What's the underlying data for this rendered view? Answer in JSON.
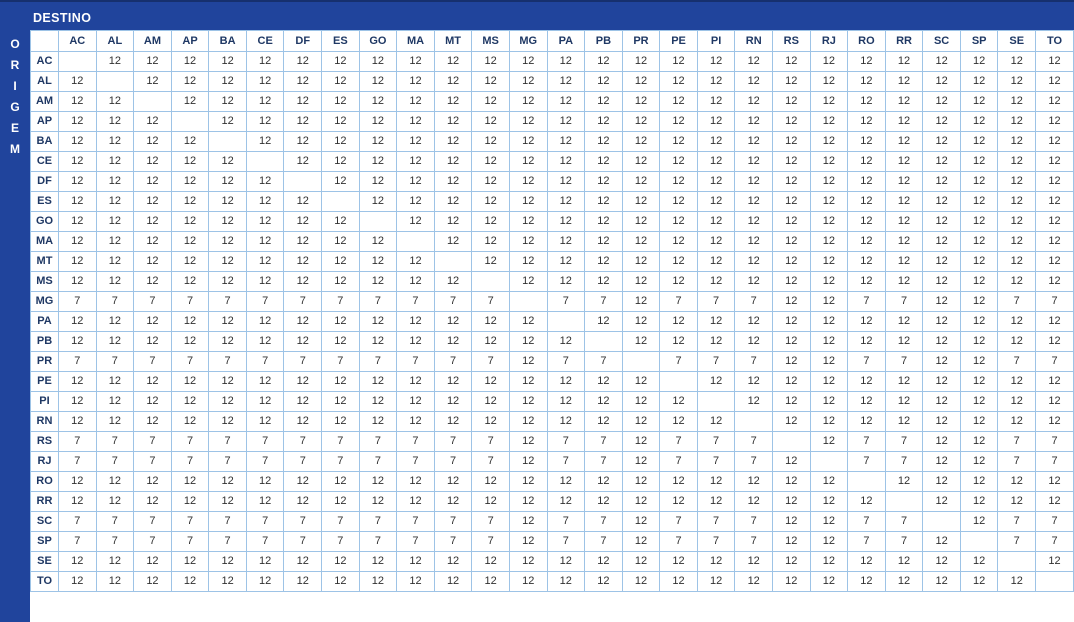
{
  "header": {
    "destino_label": "DESTINO",
    "origem_label": "ORIGEM",
    "origem_letters": [
      "O",
      "R",
      "I",
      "G",
      "E",
      "M"
    ]
  },
  "colors": {
    "band_blue": "#20449C",
    "band_edge_dark": "#16306E",
    "grid_line": "#9DC3E6",
    "header_text": "#1F3864",
    "value_text": "#303030",
    "band_text": "#FFFFFF",
    "cell_background": "#FFFFFF"
  },
  "table": {
    "corner_label": "",
    "column_headers": [
      "AC",
      "AL",
      "AM",
      "AP",
      "BA",
      "CE",
      "DF",
      "ES",
      "GO",
      "MA",
      "MT",
      "MS",
      "MG",
      "PA",
      "PB",
      "PR",
      "PE",
      "PI",
      "RN",
      "RS",
      "RJ",
      "RO",
      "RR",
      "SC",
      "SP",
      "SE",
      "TO"
    ],
    "row_headers": [
      "AC",
      "AL",
      "AM",
      "AP",
      "BA",
      "CE",
      "DF",
      "ES",
      "GO",
      "MA",
      "MT",
      "MS",
      "MG",
      "PA",
      "PB",
      "PR",
      "PE",
      "PI",
      "RN",
      "RS",
      "RJ",
      "RO",
      "RR",
      "SC",
      "SP",
      "SE",
      "TO"
    ],
    "matrix": [
      [
        "",
        "12",
        "12",
        "12",
        "12",
        "12",
        "12",
        "12",
        "12",
        "12",
        "12",
        "12",
        "12",
        "12",
        "12",
        "12",
        "12",
        "12",
        "12",
        "12",
        "12",
        "12",
        "12",
        "12",
        "12",
        "12",
        "12"
      ],
      [
        "12",
        "",
        "12",
        "12",
        "12",
        "12",
        "12",
        "12",
        "12",
        "12",
        "12",
        "12",
        "12",
        "12",
        "12",
        "12",
        "12",
        "12",
        "12",
        "12",
        "12",
        "12",
        "12",
        "12",
        "12",
        "12",
        "12"
      ],
      [
        "12",
        "12",
        "",
        "12",
        "12",
        "12",
        "12",
        "12",
        "12",
        "12",
        "12",
        "12",
        "12",
        "12",
        "12",
        "12",
        "12",
        "12",
        "12",
        "12",
        "12",
        "12",
        "12",
        "12",
        "12",
        "12",
        "12"
      ],
      [
        "12",
        "12",
        "12",
        "",
        "12",
        "12",
        "12",
        "12",
        "12",
        "12",
        "12",
        "12",
        "12",
        "12",
        "12",
        "12",
        "12",
        "12",
        "12",
        "12",
        "12",
        "12",
        "12",
        "12",
        "12",
        "12",
        "12"
      ],
      [
        "12",
        "12",
        "12",
        "12",
        "",
        "12",
        "12",
        "12",
        "12",
        "12",
        "12",
        "12",
        "12",
        "12",
        "12",
        "12",
        "12",
        "12",
        "12",
        "12",
        "12",
        "12",
        "12",
        "12",
        "12",
        "12",
        "12"
      ],
      [
        "12",
        "12",
        "12",
        "12",
        "12",
        "",
        "12",
        "12",
        "12",
        "12",
        "12",
        "12",
        "12",
        "12",
        "12",
        "12",
        "12",
        "12",
        "12",
        "12",
        "12",
        "12",
        "12",
        "12",
        "12",
        "12",
        "12"
      ],
      [
        "12",
        "12",
        "12",
        "12",
        "12",
        "12",
        "",
        "12",
        "12",
        "12",
        "12",
        "12",
        "12",
        "12",
        "12",
        "12",
        "12",
        "12",
        "12",
        "12",
        "12",
        "12",
        "12",
        "12",
        "12",
        "12",
        "12"
      ],
      [
        "12",
        "12",
        "12",
        "12",
        "12",
        "12",
        "12",
        "",
        "12",
        "12",
        "12",
        "12",
        "12",
        "12",
        "12",
        "12",
        "12",
        "12",
        "12",
        "12",
        "12",
        "12",
        "12",
        "12",
        "12",
        "12",
        "12"
      ],
      [
        "12",
        "12",
        "12",
        "12",
        "12",
        "12",
        "12",
        "12",
        "",
        "12",
        "12",
        "12",
        "12",
        "12",
        "12",
        "12",
        "12",
        "12",
        "12",
        "12",
        "12",
        "12",
        "12",
        "12",
        "12",
        "12",
        "12"
      ],
      [
        "12",
        "12",
        "12",
        "12",
        "12",
        "12",
        "12",
        "12",
        "12",
        "",
        "12",
        "12",
        "12",
        "12",
        "12",
        "12",
        "12",
        "12",
        "12",
        "12",
        "12",
        "12",
        "12",
        "12",
        "12",
        "12",
        "12"
      ],
      [
        "12",
        "12",
        "12",
        "12",
        "12",
        "12",
        "12",
        "12",
        "12",
        "12",
        "",
        "12",
        "12",
        "12",
        "12",
        "12",
        "12",
        "12",
        "12",
        "12",
        "12",
        "12",
        "12",
        "12",
        "12",
        "12",
        "12"
      ],
      [
        "12",
        "12",
        "12",
        "12",
        "12",
        "12",
        "12",
        "12",
        "12",
        "12",
        "12",
        "",
        "12",
        "12",
        "12",
        "12",
        "12",
        "12",
        "12",
        "12",
        "12",
        "12",
        "12",
        "12",
        "12",
        "12",
        "12"
      ],
      [
        "7",
        "7",
        "7",
        "7",
        "7",
        "7",
        "7",
        "7",
        "7",
        "7",
        "7",
        "7",
        "",
        "7",
        "7",
        "12",
        "7",
        "7",
        "7",
        "12",
        "12",
        "7",
        "7",
        "12",
        "12",
        "7",
        "7"
      ],
      [
        "12",
        "12",
        "12",
        "12",
        "12",
        "12",
        "12",
        "12",
        "12",
        "12",
        "12",
        "12",
        "12",
        "",
        "12",
        "12",
        "12",
        "12",
        "12",
        "12",
        "12",
        "12",
        "12",
        "12",
        "12",
        "12",
        "12"
      ],
      [
        "12",
        "12",
        "12",
        "12",
        "12",
        "12",
        "12",
        "12",
        "12",
        "12",
        "12",
        "12",
        "12",
        "12",
        "",
        "12",
        "12",
        "12",
        "12",
        "12",
        "12",
        "12",
        "12",
        "12",
        "12",
        "12",
        "12"
      ],
      [
        "7",
        "7",
        "7",
        "7",
        "7",
        "7",
        "7",
        "7",
        "7",
        "7",
        "7",
        "7",
        "12",
        "7",
        "7",
        "",
        "7",
        "7",
        "7",
        "12",
        "12",
        "7",
        "7",
        "12",
        "12",
        "7",
        "7"
      ],
      [
        "12",
        "12",
        "12",
        "12",
        "12",
        "12",
        "12",
        "12",
        "12",
        "12",
        "12",
        "12",
        "12",
        "12",
        "12",
        "12",
        "",
        "12",
        "12",
        "12",
        "12",
        "12",
        "12",
        "12",
        "12",
        "12",
        "12"
      ],
      [
        "12",
        "12",
        "12",
        "12",
        "12",
        "12",
        "12",
        "12",
        "12",
        "12",
        "12",
        "12",
        "12",
        "12",
        "12",
        "12",
        "12",
        "",
        "12",
        "12",
        "12",
        "12",
        "12",
        "12",
        "12",
        "12",
        "12"
      ],
      [
        "12",
        "12",
        "12",
        "12",
        "12",
        "12",
        "12",
        "12",
        "12",
        "12",
        "12",
        "12",
        "12",
        "12",
        "12",
        "12",
        "12",
        "12",
        "",
        "12",
        "12",
        "12",
        "12",
        "12",
        "12",
        "12",
        "12"
      ],
      [
        "7",
        "7",
        "7",
        "7",
        "7",
        "7",
        "7",
        "7",
        "7",
        "7",
        "7",
        "7",
        "12",
        "7",
        "7",
        "12",
        "7",
        "7",
        "7",
        "",
        "12",
        "7",
        "7",
        "12",
        "12",
        "7",
        "7"
      ],
      [
        "7",
        "7",
        "7",
        "7",
        "7",
        "7",
        "7",
        "7",
        "7",
        "7",
        "7",
        "7",
        "12",
        "7",
        "7",
        "12",
        "7",
        "7",
        "7",
        "12",
        "",
        "7",
        "7",
        "12",
        "12",
        "7",
        "7"
      ],
      [
        "12",
        "12",
        "12",
        "12",
        "12",
        "12",
        "12",
        "12",
        "12",
        "12",
        "12",
        "12",
        "12",
        "12",
        "12",
        "12",
        "12",
        "12",
        "12",
        "12",
        "12",
        "",
        "12",
        "12",
        "12",
        "12",
        "12"
      ],
      [
        "12",
        "12",
        "12",
        "12",
        "12",
        "12",
        "12",
        "12",
        "12",
        "12",
        "12",
        "12",
        "12",
        "12",
        "12",
        "12",
        "12",
        "12",
        "12",
        "12",
        "12",
        "12",
        "",
        "12",
        "12",
        "12",
        "12"
      ],
      [
        "7",
        "7",
        "7",
        "7",
        "7",
        "7",
        "7",
        "7",
        "7",
        "7",
        "7",
        "7",
        "12",
        "7",
        "7",
        "12",
        "7",
        "7",
        "7",
        "12",
        "12",
        "7",
        "7",
        "",
        "12",
        "7",
        "7"
      ],
      [
        "7",
        "7",
        "7",
        "7",
        "7",
        "7",
        "7",
        "7",
        "7",
        "7",
        "7",
        "7",
        "12",
        "7",
        "7",
        "12",
        "7",
        "7",
        "7",
        "12",
        "12",
        "7",
        "7",
        "12",
        "",
        "7",
        "7"
      ],
      [
        "12",
        "12",
        "12",
        "12",
        "12",
        "12",
        "12",
        "12",
        "12",
        "12",
        "12",
        "12",
        "12",
        "12",
        "12",
        "12",
        "12",
        "12",
        "12",
        "12",
        "12",
        "12",
        "12",
        "12",
        "12",
        "",
        "12"
      ],
      [
        "12",
        "12",
        "12",
        "12",
        "12",
        "12",
        "12",
        "12",
        "12",
        "12",
        "12",
        "12",
        "12",
        "12",
        "12",
        "12",
        "12",
        "12",
        "12",
        "12",
        "12",
        "12",
        "12",
        "12",
        "12",
        "12",
        ""
      ]
    ]
  }
}
